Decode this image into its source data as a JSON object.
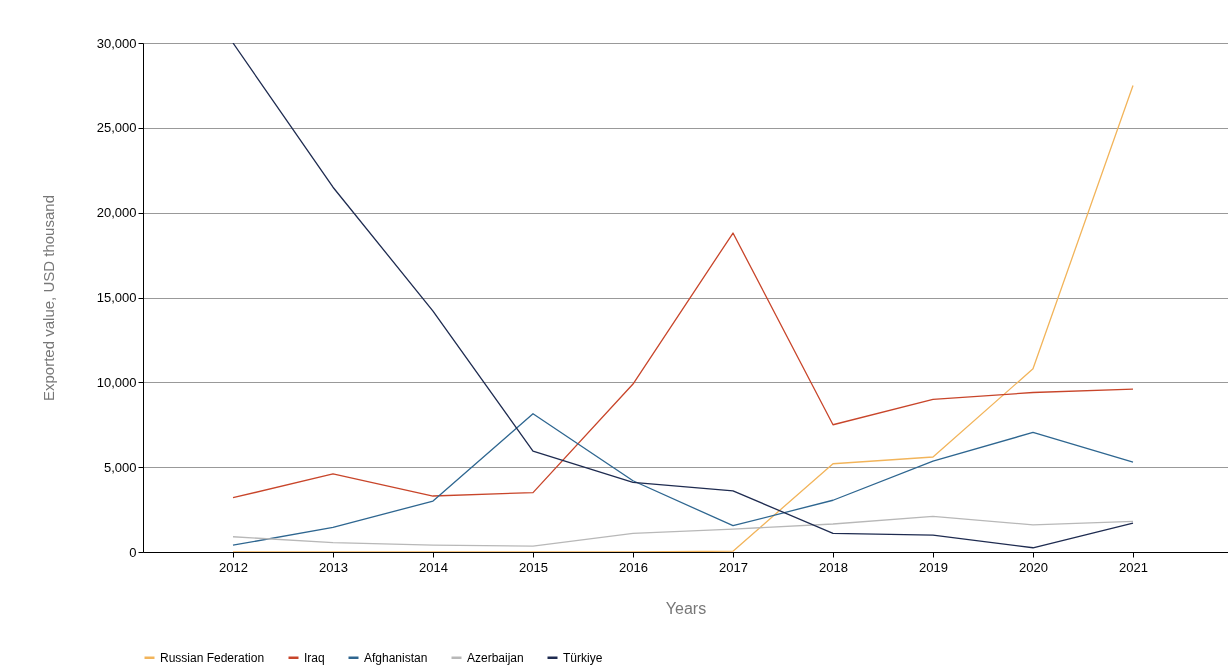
{
  "chart_data": {
    "type": "line",
    "xlabel": "Years",
    "ylabel": "Exported value, USD thousand",
    "x": [
      2012,
      2013,
      2014,
      2015,
      2016,
      2017,
      2018,
      2019,
      2020,
      2021
    ],
    "xlim": [
      2011.1,
      2021.95
    ],
    "xticks": [
      2012,
      2013,
      2014,
      2015,
      2016,
      2017,
      2018,
      2019,
      2020,
      2021
    ],
    "ylim": [
      0,
      30000
    ],
    "yticks": [
      0,
      {
        "value": 5000,
        "label": "5,000"
      },
      {
        "value": 10000,
        "label": "10,000"
      },
      {
        "value": 15000,
        "label": "15,000"
      },
      {
        "value": 20000,
        "label": "20,000"
      },
      {
        "value": 25000,
        "label": "25,000"
      },
      {
        "value": 30000,
        "label": "30,000"
      }
    ],
    "grid": "y",
    "legend": "bottom",
    "line_style": "solid",
    "series": [
      {
        "name": "Russian Federation",
        "color": "#f2b45a",
        "values": [
          0,
          0,
          0,
          0,
          0,
          50,
          5200,
          5600,
          10800,
          27500
        ]
      },
      {
        "name": "Iraq",
        "color": "#c8452a",
        "values": [
          3200,
          4600,
          3300,
          3500,
          9900,
          18800,
          7500,
          9000,
          9400,
          9600
        ]
      },
      {
        "name": "Afghanistan",
        "color": "#2e6690",
        "values": [
          400,
          1450,
          3000,
          8150,
          4200,
          1550,
          3050,
          5350,
          7050,
          5300
        ]
      },
      {
        "name": "Azerbaijan",
        "color": "#b8b8b8",
        "values": [
          900,
          550,
          400,
          350,
          1100,
          1350,
          1650,
          2100,
          1600,
          1800
        ]
      },
      {
        "name": "Türkiye",
        "color": "#1e2b50",
        "values": [
          30000,
          21500,
          14200,
          5950,
          4100,
          3600,
          1100,
          1000,
          250,
          1700
        ]
      }
    ]
  }
}
